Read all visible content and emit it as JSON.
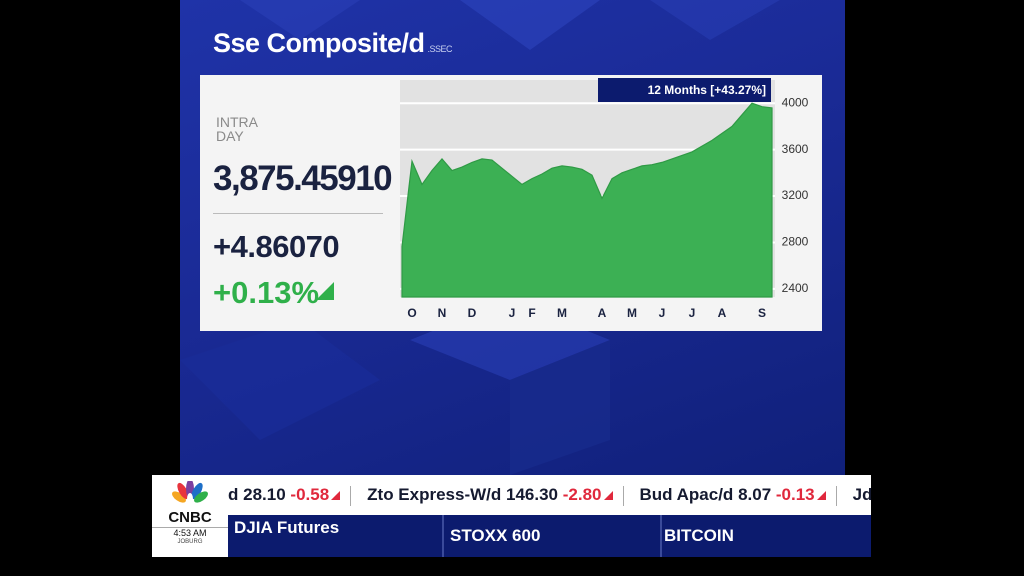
{
  "chart_data": {
    "type": "area",
    "title": "Sse Composite/d",
    "subtitle": ".SSEC",
    "badge": "12 Months [+43.27%]",
    "categories": [
      null,
      "O",
      null,
      null,
      "N",
      null,
      null,
      "D",
      null,
      null,
      null,
      "J",
      null,
      "F",
      null,
      null,
      "M",
      null,
      null,
      null,
      "A",
      null,
      null,
      "M",
      null,
      null,
      "J",
      null,
      null,
      "J",
      null,
      null,
      "A",
      null,
      null,
      null,
      "S",
      null
    ],
    "series": [
      {
        "name": "Sse Composite/d",
        "color": "#3cb054",
        "values": [
          2765,
          3500,
          3300,
          3420,
          3520,
          3420,
          3450,
          3490,
          3520,
          3510,
          3440,
          3370,
          3300,
          3350,
          3390,
          3440,
          3460,
          3450,
          3430,
          3380,
          3180,
          3350,
          3400,
          3430,
          3460,
          3470,
          3490,
          3520,
          3550,
          3580,
          3630,
          3680,
          3740,
          3800,
          3900,
          4000,
          3970,
          3960
        ]
      }
    ],
    "ylim": [
      2330,
      4200
    ],
    "yticks": [
      2400,
      2800,
      3200,
      3600,
      4000
    ],
    "grid": true
  },
  "quote": {
    "label_line1": "INTRA",
    "label_line2": "DAY",
    "price": "3,875.45910",
    "change": "+4.86070",
    "percent": "+0.13%"
  },
  "ticker": [
    {
      "name": "d",
      "price": "28.10",
      "change": "-0.58"
    },
    {
      "name": "Zto Express-W/d",
      "price": "146.30",
      "change": "-2.80"
    },
    {
      "name": "Bud Apac/d",
      "price": "8.07",
      "change": "-0.13"
    },
    {
      "name": "Jd Logis",
      "price": null,
      "change": null
    }
  ],
  "bottom_bar": [
    "DJIA Futures",
    "STOXX 600",
    "BITCOIN"
  ],
  "logo": {
    "brand": "CNBC",
    "time": "4:53 AM",
    "city": "JOBURG"
  }
}
